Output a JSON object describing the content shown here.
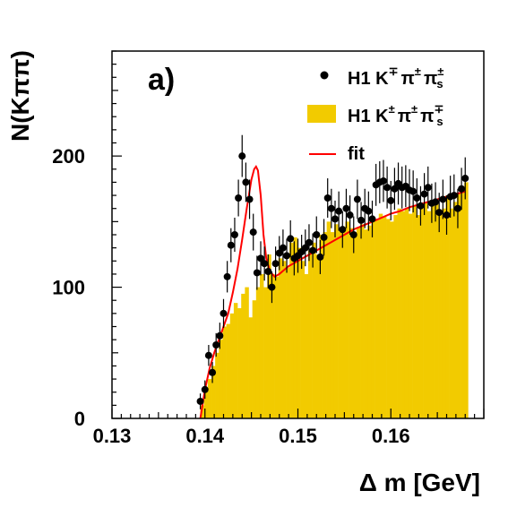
{
  "chart_data": {
    "type": "bar",
    "panel_label": "a)",
    "xlabel": "Δ m [GeV]",
    "ylabel": "N(Kππ)",
    "xlim": [
      0.13,
      0.17
    ],
    "ylim": [
      0,
      280
    ],
    "xticks": [
      0.13,
      0.14,
      0.15,
      0.16
    ],
    "xtick_labels": [
      "0.13",
      "0.14",
      "0.15",
      "0.16"
    ],
    "yticks": [
      0,
      100,
      200
    ],
    "ytick_labels": [
      "0",
      "100",
      "200"
    ],
    "grid": false,
    "legend_position": "top-right",
    "legend": {
      "data_label": "H1  K",
      "data_sup_k": "∓",
      "data_pi": "π",
      "data_sup_pi": "±",
      "data_pis": "π",
      "data_sub_s": "s",
      "data_sup_pis": "±",
      "bg_label": "H1  K",
      "bg_sup_k": "±",
      "bg_pi": "π",
      "bg_sup_pi": "±",
      "bg_pis": "π",
      "bg_sub_s": "s",
      "bg_sup_pis": "∓",
      "fit_label": "fit"
    },
    "colors": {
      "data": "#000000",
      "background": "#f2cb00",
      "fit": "#ff0000",
      "axes": "#000000"
    },
    "series": [
      {
        "name": "H1  K∓ π± πs±",
        "kind": "points_with_errors",
        "x": [
          0.1395,
          0.14,
          0.1404,
          0.1408,
          0.1412,
          0.1416,
          0.142,
          0.1424,
          0.1428,
          0.1432,
          0.1436,
          0.144,
          0.1444,
          0.1448,
          0.1452,
          0.1456,
          0.146,
          0.1464,
          0.1468,
          0.1472,
          0.1476,
          0.148,
          0.1484,
          0.1488,
          0.1492,
          0.1496,
          0.15,
          0.1504,
          0.1508,
          0.1512,
          0.1516,
          0.152,
          0.1524,
          0.1528,
          0.1532,
          0.1536,
          0.154,
          0.1544,
          0.1548,
          0.1552,
          0.1556,
          0.156,
          0.1564,
          0.1568,
          0.1572,
          0.1576,
          0.158,
          0.1584,
          0.1588,
          0.1592,
          0.1596,
          0.16,
          0.1604,
          0.1608,
          0.1612,
          0.1616,
          0.162,
          0.1624,
          0.1628,
          0.1632,
          0.1636,
          0.164,
          0.1644,
          0.1648,
          0.1652,
          0.1656,
          0.166,
          0.1664,
          0.1668,
          0.1672,
          0.1676,
          0.168
        ],
        "y": [
          13,
          22,
          48,
          35,
          56,
          63,
          80,
          108,
          132,
          140,
          168,
          200,
          180,
          167,
          142,
          111,
          122,
          118,
          112,
          100,
          118,
          126,
          130,
          124,
          137,
          122,
          124,
          127,
          130,
          134,
          128,
          140,
          123,
          138,
          168,
          160,
          152,
          158,
          144,
          160,
          155,
          140,
          167,
          151,
          160,
          158,
          152,
          178,
          180,
          181,
          176,
          166,
          175,
          179,
          176,
          177,
          174,
          173,
          168,
          162,
          171,
          176,
          164,
          165,
          157,
          167,
          155,
          169,
          170,
          160,
          175,
          183
        ],
        "yerr": [
          6,
          7,
          8,
          8,
          9,
          10,
          11,
          12,
          13,
          13,
          14,
          16,
          15,
          15,
          14,
          13,
          13,
          13,
          13,
          12,
          13,
          13,
          14,
          13,
          14,
          13,
          13,
          13,
          14,
          14,
          13,
          14,
          13,
          14,
          15,
          15,
          14,
          15,
          14,
          15,
          15,
          14,
          15,
          14,
          15,
          15,
          14,
          16,
          16,
          16,
          16,
          15,
          16,
          16,
          16,
          16,
          16,
          16,
          15,
          15,
          16,
          16,
          15,
          15,
          15,
          15,
          15,
          16,
          16,
          15,
          16,
          16
        ]
      },
      {
        "name": "H1  K± π± πs∓",
        "kind": "histogram",
        "bin_start": 0.1395,
        "bin_width": 0.0004,
        "values": [
          10,
          20,
          30,
          40,
          50,
          60,
          70,
          72,
          80,
          88,
          84,
          95,
          100,
          77,
          90,
          100,
          110,
          100,
          125,
          110,
          108,
          122,
          120,
          115,
          134,
          138,
          130,
          120,
          110,
          128,
          134,
          125,
          140,
          142,
          150,
          142,
          148,
          145,
          146,
          150,
          145,
          140,
          146,
          148,
          144,
          147,
          150,
          152,
          156,
          154,
          152,
          150,
          155,
          160,
          158,
          160,
          156,
          162,
          155,
          160,
          164,
          158,
          162,
          165,
          155,
          160,
          170,
          160,
          165,
          172,
          175,
          180
        ]
      },
      {
        "name": "fit",
        "kind": "curve",
        "x": [
          0.1395,
          0.14,
          0.1405,
          0.141,
          0.1415,
          0.142,
          0.1425,
          0.143,
          0.1435,
          0.144,
          0.1445,
          0.145,
          0.1453,
          0.1455,
          0.1457,
          0.146,
          0.1463,
          0.1466,
          0.147,
          0.1475,
          0.148,
          0.1485,
          0.149,
          0.15,
          0.151,
          0.152,
          0.153,
          0.154,
          0.155,
          0.156,
          0.157,
          0.158,
          0.159,
          0.16,
          0.161,
          0.162,
          0.163,
          0.164,
          0.165,
          0.166,
          0.167,
          0.168
        ],
        "y": [
          0,
          22,
          38,
          50,
          60,
          70,
          80,
          96,
          114,
          136,
          160,
          182,
          190,
          192,
          189,
          170,
          140,
          122,
          112,
          108,
          110,
          113,
          116,
          120,
          124,
          128,
          132,
          136,
          140,
          144,
          147,
          150,
          153,
          156,
          158,
          161,
          163,
          165,
          167,
          169,
          171,
          173
        ]
      }
    ]
  }
}
